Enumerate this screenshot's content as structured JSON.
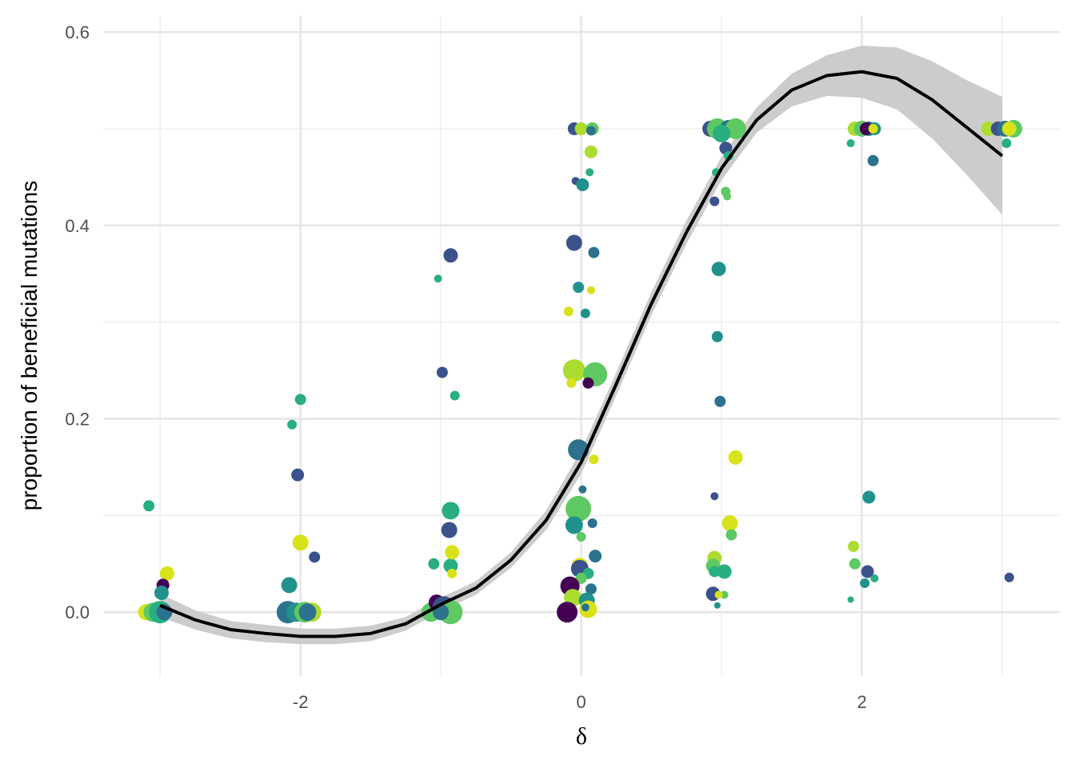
{
  "chart_data": {
    "type": "scatter",
    "x_label": "δ",
    "y_label": "proportion of beneficial mutations",
    "xlim": [
      -3.4,
      3.41
    ],
    "ylim": [
      -0.066,
      0.6166
    ],
    "xticks": [
      -2,
      0,
      2
    ],
    "yticks": [
      {
        "value": 0,
        "label": "0.0"
      },
      0.2,
      0.4,
      0.6
    ],
    "x_minor_grid": [
      -3,
      -1,
      1,
      3
    ],
    "y_minor_grid": [
      0.1,
      0.3,
      0.5
    ],
    "grid": true,
    "x": [
      -3.1,
      -3.05,
      -3.0,
      -2.97,
      -2.95,
      -2.98,
      -2.99,
      -3.08,
      -2.09,
      -2.03,
      -1.97,
      -1.92,
      -1.95,
      -2.08,
      -2.0,
      -1.9,
      -2.02,
      -2.06,
      -2.0,
      -1.07,
      -1.03,
      -0.98,
      -0.93,
      -1.0,
      -1.05,
      -0.93,
      -0.92,
      -0.94,
      -0.93,
      -0.92,
      -0.99,
      -1.02,
      -0.93,
      -0.9,
      -0.05,
      0.0,
      0.08,
      0.07,
      0.07,
      0.06,
      -0.04,
      0.01,
      -0.05,
      0.09,
      -0.02,
      0.07,
      -0.09,
      0.03,
      -0.05,
      0.1,
      0.05,
      -0.07,
      -0.02,
      0.09,
      0.01,
      -0.02,
      -0.05,
      0.08,
      0.0,
      0.1,
      -0.01,
      -0.01,
      0.05,
      0.0,
      -0.08,
      0.07,
      -0.06,
      0.04,
      -0.1,
      0.05,
      0.03,
      0.92,
      0.97,
      1.05,
      1.1,
      1.0,
      1.03,
      1.05,
      0.96,
      1.03,
      1.04,
      0.95,
      0.98,
      0.97,
      0.99,
      1.1,
      0.95,
      1.06,
      1.07,
      0.95,
      0.94,
      0.95,
      1.02,
      0.94,
      1.02,
      0.98,
      0.97,
      1.95,
      2.0,
      2.05,
      2.09,
      2.03,
      2.08,
      1.92,
      2.08,
      2.05,
      1.94,
      1.95,
      2.04,
      2.09,
      2.02,
      1.92,
      2.9,
      2.97,
      3.02,
      3.08,
      3.05,
      3.03,
      3.05
    ],
    "y": [
      0,
      0,
      0,
      0,
      0.04,
      0.028,
      0.02,
      0.11,
      0,
      0,
      0,
      0,
      0,
      0.028,
      0.072,
      0.057,
      0.142,
      0.194,
      0.22,
      0,
      0.01,
      0.005,
      0,
      0,
      0.05,
      0.048,
      0.062,
      0.085,
      0.105,
      0.04,
      0.248,
      0.345,
      0.369,
      0.224,
      0.5,
      0.5,
      0.5,
      0.498,
      0.476,
      0.455,
      0.446,
      0.442,
      0.382,
      0.372,
      0.336,
      0.333,
      0.311,
      0.309,
      0.25,
      0.246,
      0.237,
      0.237,
      0.168,
      0.158,
      0.127,
      0.107,
      0.09,
      0.092,
      0.078,
      0.058,
      0.048,
      0.045,
      0.04,
      0.035,
      0.027,
      0.024,
      0.015,
      0.012,
      0,
      0.003,
      0.005,
      0.5,
      0.5,
      0.5,
      0.5,
      0.495,
      0.48,
      0.472,
      0.455,
      0.435,
      0.43,
      0.425,
      0.355,
      0.285,
      0.218,
      0.16,
      0.12,
      0.092,
      0.08,
      0.056,
      0.048,
      0.042,
      0.042,
      0.019,
      0.018,
      0.018,
      0.007,
      0.5,
      0.5,
      0.5,
      0.5,
      0.5,
      0.5,
      0.485,
      0.467,
      0.119,
      0.068,
      0.05,
      0.042,
      0.035,
      0.03,
      0.013,
      0.5,
      0.5,
      0.5,
      0.5,
      0.5,
      0.485,
      0.036
    ],
    "sizes": [
      10,
      12,
      14,
      10,
      9,
      8,
      9,
      7,
      14,
      12,
      13,
      12,
      11,
      10,
      10,
      7,
      8,
      6,
      7,
      12,
      10,
      14,
      15,
      10,
      7,
      9,
      9,
      10,
      11,
      6,
      7,
      5,
      9,
      6,
      8,
      8,
      8,
      6,
      8,
      5,
      5,
      8,
      10,
      7,
      7,
      5,
      6,
      6,
      14,
      15,
      7,
      6,
      13,
      6,
      5,
      16,
      11,
      6,
      6,
      8,
      10,
      11,
      7,
      7,
      12,
      7,
      11,
      10,
      13,
      11,
      5,
      10,
      13,
      11,
      13,
      11,
      8,
      6,
      5,
      6,
      5,
      6,
      9,
      7,
      7,
      9,
      5,
      10,
      7,
      9,
      9,
      7,
      9,
      9,
      5,
      5,
      4,
      9,
      10,
      9,
      8,
      8,
      6,
      5,
      7,
      8,
      7,
      7,
      8,
      5,
      6,
      4,
      9,
      9,
      10,
      11,
      9,
      6,
      6
    ],
    "colors": [
      "#d8e219",
      "#5ec962",
      "#28ae80",
      "#2c728e",
      "#d8e219",
      "#440154",
      "#21918c",
      "#28ae80",
      "#2c728e",
      "#21918c",
      "#5ec962",
      "#addc30",
      "#2c728e",
      "#21918c",
      "#d8e219",
      "#3b528b",
      "#3b528b",
      "#28ae80",
      "#28ae80",
      "#5ec962",
      "#440154",
      "#3b528b",
      "#5ec962",
      "#2c728e",
      "#28ae80",
      "#28ae80",
      "#d8e219",
      "#3b528b",
      "#28ae80",
      "#d8e219",
      "#3b528b",
      "#28ae80",
      "#3b528b",
      "#28ae80",
      "#3b528b",
      "#addc30",
      "#5ec962",
      "#2c728e",
      "#addc30",
      "#28ae80",
      "#3b528b",
      "#21918c",
      "#3b528b",
      "#2c728e",
      "#21918c",
      "#d8e219",
      "#d8e219",
      "#21918c",
      "#addc30",
      "#5ec962",
      "#440154",
      "#d8e219",
      "#2c728e",
      "#d8e219",
      "#2c728e",
      "#5ec962",
      "#21918c",
      "#2c728e",
      "#5ec962",
      "#2c728e",
      "#d8e219",
      "#3b528b",
      "#28ae80",
      "#5ec962",
      "#440154",
      "#2c728e",
      "#addc30",
      "#21918c",
      "#440154",
      "#d8e219",
      "#2c728e",
      "#3b528b",
      "#5ec962",
      "#2c728e",
      "#5ec962",
      "#28ae80",
      "#3b528b",
      "#28ae80",
      "#28ae80",
      "#5ec962",
      "#5ec962",
      "#3b528b",
      "#21918c",
      "#21918c",
      "#2c728e",
      "#d8e219",
      "#3b528b",
      "#d8e219",
      "#5ec962",
      "#addc30",
      "#5ec962",
      "#28ae80",
      "#28ae80",
      "#3b528b",
      "#5ec962",
      "#d8e219",
      "#21918c",
      "#addc30",
      "#5ec962",
      "#2c728e",
      "#21918c",
      "#440154",
      "#d8e219",
      "#28ae80",
      "#2c728e",
      "#21918c",
      "#addc30",
      "#5ec962",
      "#3b528b",
      "#28ae80",
      "#21918c",
      "#28ae80",
      "#addc30",
      "#3b528b",
      "#2c728e",
      "#5ec962",
      "#d8e219",
      "#28ae80",
      "#3b528b"
    ],
    "fit": {
      "color": "#000000",
      "band_color": "#cccccc",
      "x": [
        -3,
        -2.75,
        -2.5,
        -2.25,
        -2,
        -1.75,
        -1.5,
        -1.25,
        -1,
        -0.75,
        -0.5,
        -0.25,
        0,
        0.25,
        0.5,
        0.75,
        1,
        1.25,
        1.5,
        1.75,
        2,
        2.25,
        2.5,
        2.75,
        3
      ],
      "y": [
        0.007,
        -0.008,
        -0.018,
        -0.022,
        -0.025,
        -0.025,
        -0.022,
        -0.012,
        0.008,
        0.025,
        0.054,
        0.095,
        0.155,
        0.236,
        0.319,
        0.393,
        0.459,
        0.509,
        0.54,
        0.555,
        0.559,
        0.552,
        0.53,
        0.501,
        0.472
      ],
      "lower": [
        -0.005,
        -0.018,
        -0.027,
        -0.031,
        -0.033,
        -0.033,
        -0.03,
        -0.019,
        0.001,
        0.018,
        0.046,
        0.085,
        0.143,
        0.224,
        0.307,
        0.381,
        0.447,
        0.496,
        0.523,
        0.534,
        0.532,
        0.52,
        0.49,
        0.452,
        0.411
      ],
      "upper": [
        0.019,
        0.002,
        -0.009,
        -0.013,
        -0.017,
        -0.017,
        -0.014,
        -0.005,
        0.015,
        0.032,
        0.062,
        0.105,
        0.167,
        0.248,
        0.331,
        0.405,
        0.471,
        0.522,
        0.557,
        0.576,
        0.586,
        0.584,
        0.57,
        0.55,
        0.533
      ]
    }
  }
}
